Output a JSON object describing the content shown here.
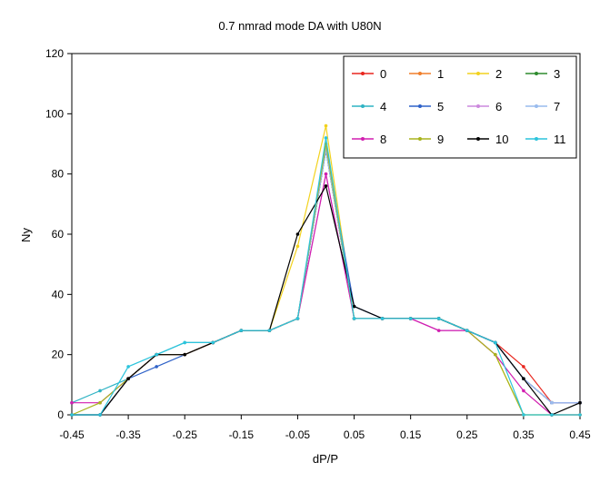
{
  "chart_data": {
    "type": "line",
    "title": "0.7 nmrad mode DA with U80N",
    "xlabel": "dP/P",
    "ylabel": "Ny",
    "xlim": [
      -0.45,
      0.45
    ],
    "ylim": [
      0,
      120
    ],
    "x_ticks": [
      "-0.45",
      "-0.35",
      "-0.25",
      "-0.15",
      "-0.05",
      "0.05",
      "0.15",
      "0.25",
      "0.35",
      "0.45"
    ],
    "y_ticks": [
      "0",
      "20",
      "40",
      "60",
      "80",
      "100",
      "120"
    ],
    "legend_position": "top-right",
    "grid": false,
    "x": [
      -0.45,
      -0.4,
      -0.35,
      -0.3,
      -0.25,
      -0.2,
      -0.15,
      -0.1,
      -0.05,
      0.0,
      0.05,
      0.1,
      0.15,
      0.2,
      0.25,
      0.3,
      0.35,
      0.4,
      0.45
    ],
    "series": [
      {
        "name": "0",
        "color": "#e8261e",
        "values": [
          0,
          0,
          12,
          20,
          20,
          24,
          28,
          28,
          32,
          88,
          32,
          32,
          32,
          32,
          28,
          24,
          16,
          4,
          4
        ]
      },
      {
        "name": "1",
        "color": "#f07f2a",
        "values": [
          0,
          0,
          12,
          20,
          20,
          24,
          28,
          28,
          32,
          88,
          32,
          32,
          32,
          32,
          28,
          24,
          12,
          4,
          4
        ]
      },
      {
        "name": "2",
        "color": "#f2d21e",
        "values": [
          0,
          0,
          12,
          20,
          20,
          24,
          28,
          28,
          56,
          96,
          32,
          32,
          32,
          32,
          28,
          20,
          0,
          0,
          0
        ]
      },
      {
        "name": "3",
        "color": "#2e8b2e",
        "values": [
          0,
          0,
          12,
          20,
          20,
          24,
          28,
          28,
          32,
          88,
          32,
          32,
          32,
          32,
          28,
          24,
          12,
          4,
          4
        ]
      },
      {
        "name": "4",
        "color": "#2fb3c4",
        "values": [
          4,
          8,
          12,
          20,
          24,
          24,
          28,
          28,
          32,
          88,
          32,
          32,
          32,
          32,
          28,
          24,
          12,
          4,
          4
        ]
      },
      {
        "name": "5",
        "color": "#2f62c8",
        "values": [
          0,
          0,
          12,
          16,
          20,
          24,
          28,
          28,
          32,
          88,
          36,
          32,
          32,
          32,
          28,
          24,
          12,
          4,
          4
        ]
      },
      {
        "name": "6",
        "color": "#cc88dd",
        "values": [
          0,
          0,
          12,
          20,
          20,
          24,
          28,
          28,
          32,
          80,
          32,
          32,
          32,
          28,
          28,
          24,
          12,
          4,
          4
        ]
      },
      {
        "name": "7",
        "color": "#99bbee",
        "values": [
          0,
          0,
          12,
          20,
          20,
          24,
          28,
          28,
          32,
          88,
          32,
          32,
          32,
          32,
          28,
          24,
          12,
          4,
          4
        ]
      },
      {
        "name": "8",
        "color": "#d21fb0",
        "values": [
          4,
          4,
          12,
          20,
          20,
          24,
          28,
          28,
          32,
          80,
          32,
          32,
          32,
          28,
          28,
          20,
          8,
          0,
          0
        ]
      },
      {
        "name": "9",
        "color": "#a8b41e",
        "values": [
          0,
          4,
          12,
          20,
          20,
          24,
          28,
          28,
          32,
          90,
          32,
          32,
          32,
          32,
          28,
          20,
          0,
          0,
          0
        ]
      },
      {
        "name": "10",
        "color": "#000000",
        "values": [
          0,
          0,
          12,
          20,
          20,
          24,
          28,
          28,
          60,
          76,
          36,
          32,
          32,
          32,
          28,
          24,
          12,
          0,
          4
        ]
      },
      {
        "name": "11",
        "color": "#2cc4dc",
        "values": [
          0,
          0,
          16,
          20,
          24,
          24,
          28,
          28,
          32,
          92,
          32,
          32,
          32,
          32,
          28,
          24,
          0,
          0,
          0
        ]
      }
    ]
  }
}
